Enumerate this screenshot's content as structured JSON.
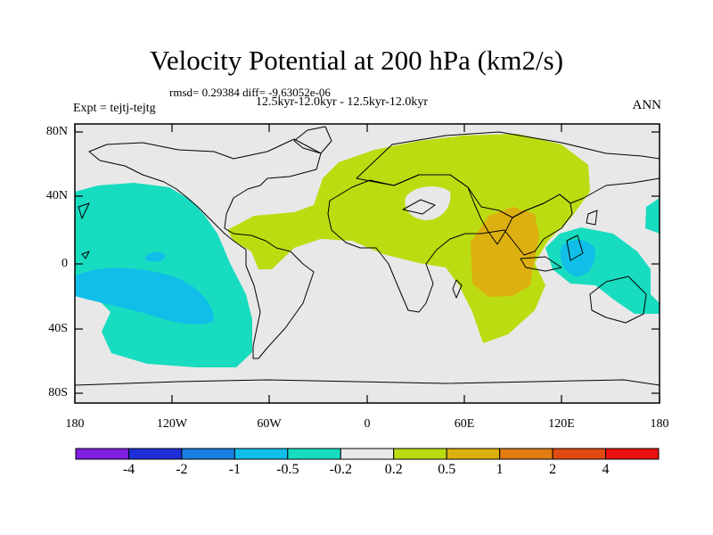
{
  "title": "Velocity Potential at 200 hPa (km2/s)",
  "stats": "rmsd= 0.29384 diff= -9.63052e-06",
  "subtitle": "12.5kyr-12.0kyr - 12.5kyr-12.0kyr",
  "expt": "Expt = tejtj-tejtg",
  "season": "ANN",
  "lat_labels": [
    "80N",
    "40N",
    "0",
    "40S",
    "80S"
  ],
  "lon_labels": [
    "180",
    "120W",
    "60W",
    "0",
    "60E",
    "120E",
    "180"
  ],
  "colorbar": {
    "colors": [
      "#7f1de0",
      "#1f2fd8",
      "#1880e0",
      "#10bee8",
      "#18dcc0",
      "#e8e8e8",
      "#bcdc12",
      "#dcb010",
      "#e07c10",
      "#e04a10",
      "#e81010"
    ],
    "labels": [
      "-4",
      "-2",
      "-1",
      "-0.5",
      "-0.2",
      "0.2",
      "0.5",
      "1",
      "2",
      "4"
    ]
  },
  "field_colors": {
    "background": "#e8e8e8",
    "cyan": "#18dcc0",
    "lightblue": "#10bee8",
    "lime": "#bcdc12",
    "orange": "#dcb010"
  }
}
